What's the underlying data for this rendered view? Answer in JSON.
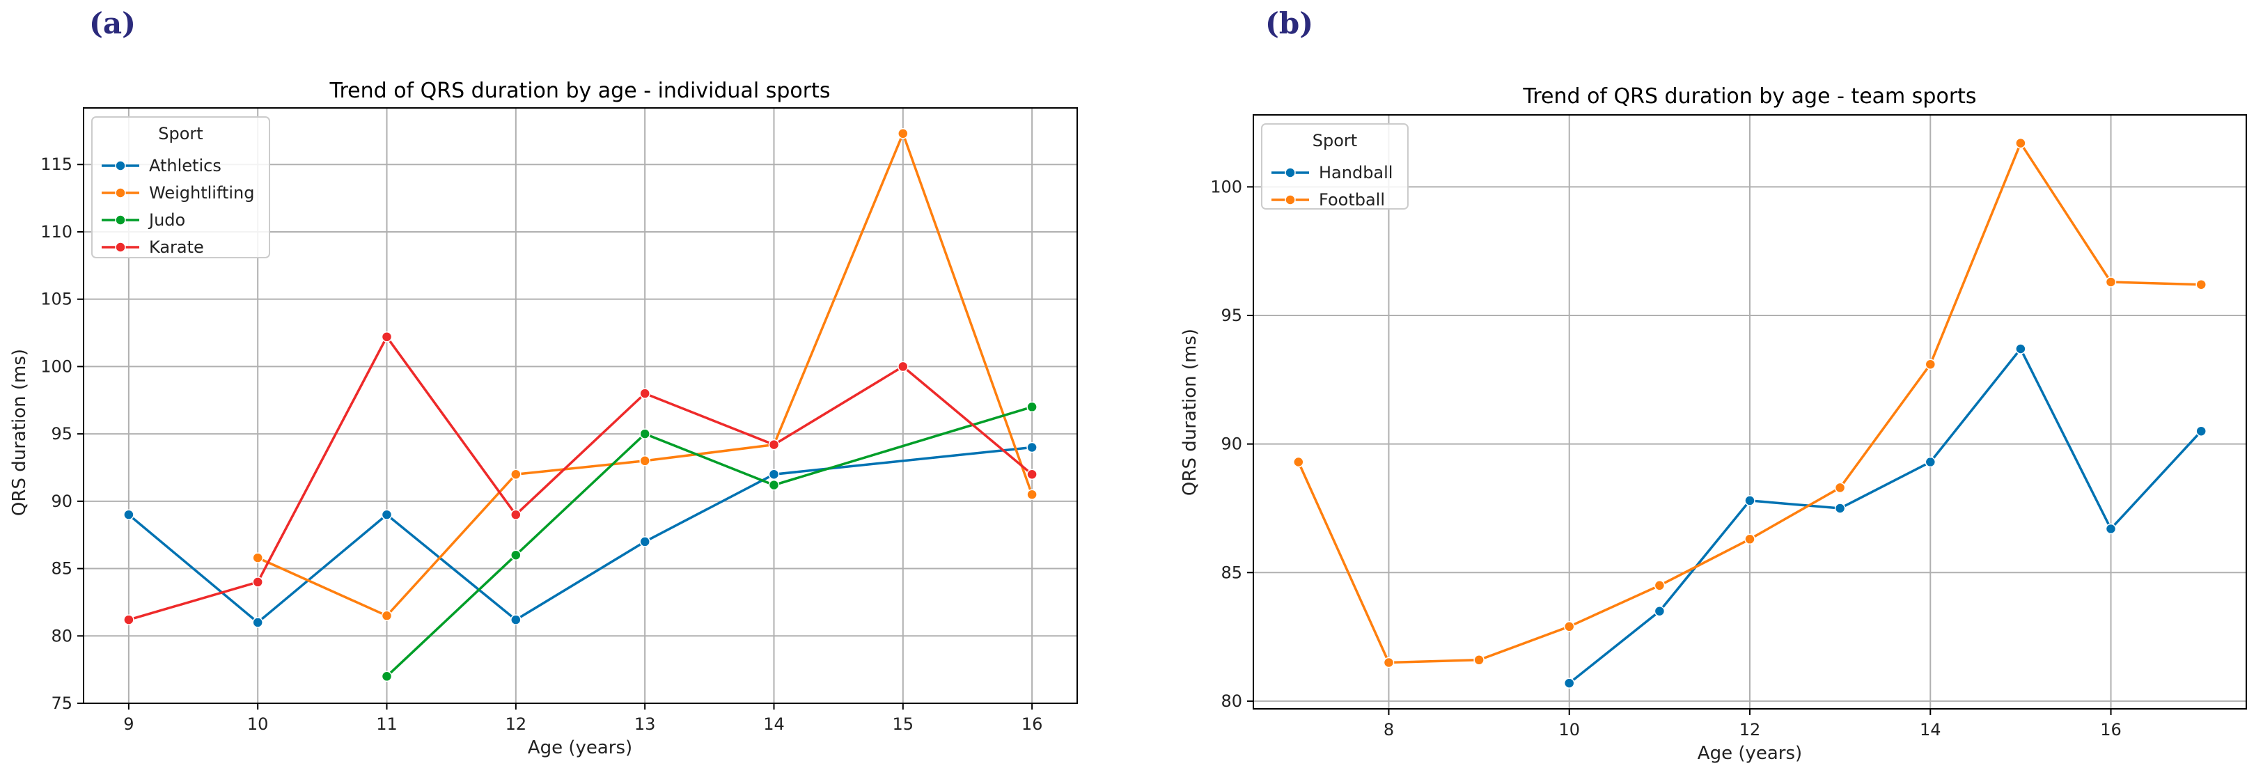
{
  "chart_data": [
    {
      "panel_label": "(a)",
      "type": "line",
      "title": "Trend of QRS duration by age - individual sports",
      "xlabel": "Age (years)",
      "ylabel": "QRS duration (ms)",
      "xlim": [
        8.65,
        16.35
      ],
      "ylim": [
        75,
        119.2
      ],
      "xticks": [
        9,
        10,
        11,
        12,
        13,
        14,
        15,
        16
      ],
      "yticks": [
        75,
        80,
        85,
        90,
        95,
        100,
        105,
        110,
        115
      ],
      "grid": true,
      "legend": {
        "title": "Sport",
        "placement": "top-left"
      },
      "series": [
        {
          "name": "Athletics",
          "color": "#0072b2",
          "points": [
            [
              9,
              89
            ],
            [
              10,
              81
            ],
            [
              11,
              89
            ],
            [
              12,
              81.2
            ],
            [
              13,
              87
            ],
            [
              14,
              92
            ],
            [
              16,
              94
            ]
          ]
        },
        {
          "name": "Weightlifting",
          "color": "#ff7f0e",
          "points": [
            [
              10,
              85.8
            ],
            [
              11,
              81.5
            ],
            [
              12,
              92
            ],
            [
              13,
              93
            ],
            [
              14,
              94.2
            ],
            [
              15,
              117.3
            ],
            [
              16,
              90.5
            ]
          ]
        },
        {
          "name": "Judo",
          "color": "#009e28",
          "points": [
            [
              11,
              77
            ],
            [
              12,
              86
            ],
            [
              13,
              95
            ],
            [
              14,
              91.2
            ],
            [
              16,
              97
            ]
          ]
        },
        {
          "name": "Karate",
          "color": "#ee2a2a",
          "points": [
            [
              9,
              81.2
            ],
            [
              10,
              84
            ],
            [
              11,
              102.2
            ],
            [
              12,
              89
            ],
            [
              13,
              98
            ],
            [
              14,
              94.2
            ],
            [
              15,
              100
            ],
            [
              16,
              92
            ]
          ]
        }
      ]
    },
    {
      "panel_label": "(b)",
      "type": "line",
      "title": "Trend of QRS duration by age - team sports",
      "xlabel": "Age (years)",
      "ylabel": "QRS duration (ms)",
      "xlim": [
        6.5,
        17.5
      ],
      "ylim": [
        79.7,
        102.8
      ],
      "xticks": [
        8,
        10,
        12,
        14,
        16
      ],
      "yticks": [
        80,
        85,
        90,
        95,
        100
      ],
      "grid": true,
      "legend": {
        "title": "Sport",
        "placement": "top-left"
      },
      "series": [
        {
          "name": "Handball",
          "color": "#0072b2",
          "points": [
            [
              10,
              80.7
            ],
            [
              11,
              83.5
            ],
            [
              12,
              87.8
            ],
            [
              13,
              87.5
            ],
            [
              14,
              89.3
            ],
            [
              15,
              93.7
            ],
            [
              16,
              86.7
            ],
            [
              17,
              90.5
            ]
          ]
        },
        {
          "name": "Football",
          "color": "#ff7f0e",
          "points": [
            [
              7,
              89.3
            ],
            [
              8,
              81.5
            ],
            [
              9,
              81.6
            ],
            [
              10,
              82.9
            ],
            [
              11,
              84.5
            ],
            [
              12,
              86.3
            ],
            [
              13,
              88.3
            ],
            [
              14,
              93.1
            ],
            [
              15,
              101.7
            ],
            [
              16,
              96.3
            ],
            [
              17,
              96.2
            ]
          ]
        }
      ]
    }
  ]
}
